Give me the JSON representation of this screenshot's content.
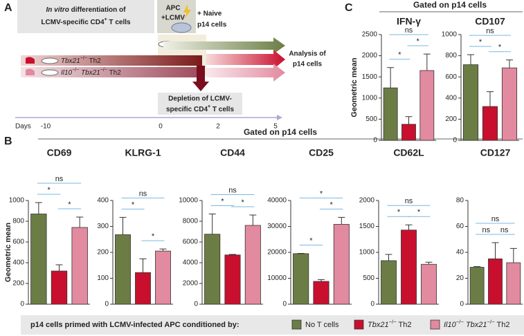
{
  "panel_labels": {
    "a": "A",
    "b": "B",
    "c": "C"
  },
  "panel_a": {
    "step1_line1": [
      {
        "text": "In vitro",
        "italic": true
      },
      {
        "text": " differentiation of"
      }
    ],
    "step1_line2": [
      {
        "text": "LCMV-specific CD4"
      },
      {
        "text": "+",
        "sup": true
      },
      {
        "text": " T cells"
      }
    ],
    "apc_line1": "APC",
    "apc_line2": "+LCMV",
    "naive_line1": "+ Naive",
    "naive_line2": "p14 cells",
    "group1": [
      {
        "text": "Tbx21",
        "italic": true
      },
      {
        "text": "−/−",
        "sup": true
      },
      {
        "text": " Th2"
      }
    ],
    "group2": [
      {
        "text": "Il10",
        "italic": true
      },
      {
        "text": "−/−",
        "sup": true
      },
      {
        "text": " "
      },
      {
        "text": "Tbx21",
        "italic": true
      },
      {
        "text": "−/−",
        "sup": true
      },
      {
        "text": " Th2"
      }
    ],
    "analysis_line1": "Analysis of",
    "analysis_line2": "p14 cells",
    "depletion_line1": "Depletion of LCMV-",
    "depletion_line2": [
      {
        "text": "specific CD4"
      },
      {
        "text": "+",
        "sup": true
      },
      {
        "text": " T cells"
      }
    ],
    "timeline_label": "Days",
    "timeline_days": [
      "-10",
      "0",
      "2",
      "5"
    ]
  },
  "headers": {
    "c": "Gated on p14 cells",
    "b": "Gated on p14 cells"
  },
  "legend": {
    "title": "p14 cells primed with LCMV-infected APC conditioned by:",
    "items": [
      {
        "label": [
          {
            "text": "No T cells"
          }
        ],
        "color": "#6b7d45"
      },
      {
        "label": [
          {
            "text": "Tbx21",
            "italic": true
          },
          {
            "text": "−/−",
            "sup": true
          },
          {
            "text": " Th2"
          }
        ],
        "color": "#c8102e"
      },
      {
        "label": [
          {
            "text": "Il10",
            "italic": true
          },
          {
            "text": "−/−",
            "sup": true
          },
          {
            "text": " "
          },
          {
            "text": "Tbx21",
            "italic": true
          },
          {
            "text": "−/−",
            "sup": true
          },
          {
            "text": " Th2"
          }
        ],
        "color": "#e28a9f"
      }
    ]
  },
  "chart_data": [
    {
      "type": "bar",
      "title": "IFN-γ",
      "ylabel": "Geometric mean",
      "values": [
        1240,
        380,
        1650
      ],
      "errors": [
        480,
        180,
        390
      ],
      "ylim": [
        0,
        2500
      ],
      "yticks": [
        0,
        500,
        1000,
        1500,
        2000,
        2500
      ],
      "comparisons": [
        {
          "groups": [
            0,
            1
          ],
          "label": "*"
        },
        {
          "groups": [
            1,
            2
          ],
          "label": "*"
        },
        {
          "groups": [
            0,
            2
          ],
          "label": "ns"
        }
      ]
    },
    {
      "type": "bar",
      "title": "CD107",
      "values": [
        715,
        320,
        685
      ],
      "errors": [
        95,
        140,
        75
      ],
      "ylim": [
        0,
        1000
      ],
      "yticks": [
        0,
        200,
        400,
        600,
        800,
        1000
      ],
      "comparisons": [
        {
          "groups": [
            0,
            1
          ],
          "label": "*"
        },
        {
          "groups": [
            1,
            2
          ],
          "label": "*"
        },
        {
          "groups": [
            0,
            2
          ],
          "label": "ns"
        }
      ]
    },
    {
      "type": "bar",
      "title": "CD69",
      "ylabel": "Geometric mean",
      "values": [
        870,
        320,
        740
      ],
      "errors": [
        110,
        60,
        100
      ],
      "ylim": [
        0,
        1000
      ],
      "yticks": [
        0,
        200,
        400,
        600,
        800,
        1000
      ],
      "comparisons": [
        {
          "groups": [
            0,
            1
          ],
          "label": "*"
        },
        {
          "groups": [
            1,
            2
          ],
          "label": "*"
        },
        {
          "groups": [
            0,
            2
          ],
          "label": "ns"
        }
      ]
    },
    {
      "type": "bar",
      "title": "KLRG-1",
      "values": [
        268,
        122,
        205
      ],
      "errors": [
        67,
        53,
        8
      ],
      "ylim": [
        0,
        400
      ],
      "yticks": [
        0,
        100,
        200,
        300,
        400
      ],
      "comparisons": [
        {
          "groups": [
            0,
            1
          ],
          "label": "*"
        },
        {
          "groups": [
            1,
            2
          ],
          "label": "*"
        },
        {
          "groups": [
            0,
            2
          ],
          "label": "ns"
        }
      ]
    },
    {
      "type": "bar",
      "title": "CD44",
      "values": [
        6750,
        4750,
        7600
      ],
      "errors": [
        1950,
        50,
        1000
      ],
      "ylim": [
        0,
        10000
      ],
      "yticks": [
        0,
        2000,
        4000,
        6000,
        8000,
        10000
      ],
      "comparisons": [
        {
          "groups": [
            0,
            1
          ],
          "label": "*"
        },
        {
          "groups": [
            1,
            2
          ],
          "label": "*"
        },
        {
          "groups": [
            0,
            2
          ],
          "label": "ns"
        }
      ]
    },
    {
      "type": "bar",
      "title": "CD25",
      "values": [
        19500,
        8800,
        30800
      ],
      "errors": [
        100,
        700,
        2700
      ],
      "ylim": [
        0,
        40000
      ],
      "yticks": [
        0,
        10000,
        20000,
        30000,
        40000
      ],
      "comparisons": [
        {
          "groups": [
            0,
            1
          ],
          "label": "*"
        },
        {
          "groups": [
            1,
            2
          ],
          "label": "*"
        },
        {
          "groups": [
            0,
            2
          ],
          "label": "*"
        }
      ]
    },
    {
      "type": "bar",
      "title": "CD62L",
      "values": [
        840,
        1430,
        770
      ],
      "errors": [
        120,
        100,
        40
      ],
      "ylim": [
        0,
        2000
      ],
      "yticks": [
        0,
        500,
        1000,
        1500,
        2000
      ],
      "comparisons": [
        {
          "groups": [
            0,
            1
          ],
          "label": "*"
        },
        {
          "groups": [
            1,
            2
          ],
          "label": "*"
        },
        {
          "groups": [
            0,
            2
          ],
          "label": "ns"
        }
      ]
    },
    {
      "type": "bar",
      "title": "CD127",
      "values": [
        28.5,
        35,
        32
      ],
      "errors": [
        0.5,
        12.5,
        11
      ],
      "ylim": [
        0,
        80
      ],
      "yticks": [
        0,
        20,
        40,
        60,
        80
      ],
      "comparisons": [
        {
          "groups": [
            0,
            1
          ],
          "label": "ns"
        },
        {
          "groups": [
            1,
            2
          ],
          "label": "ns"
        },
        {
          "groups": [
            0,
            2
          ],
          "label": "ns"
        }
      ]
    }
  ]
}
